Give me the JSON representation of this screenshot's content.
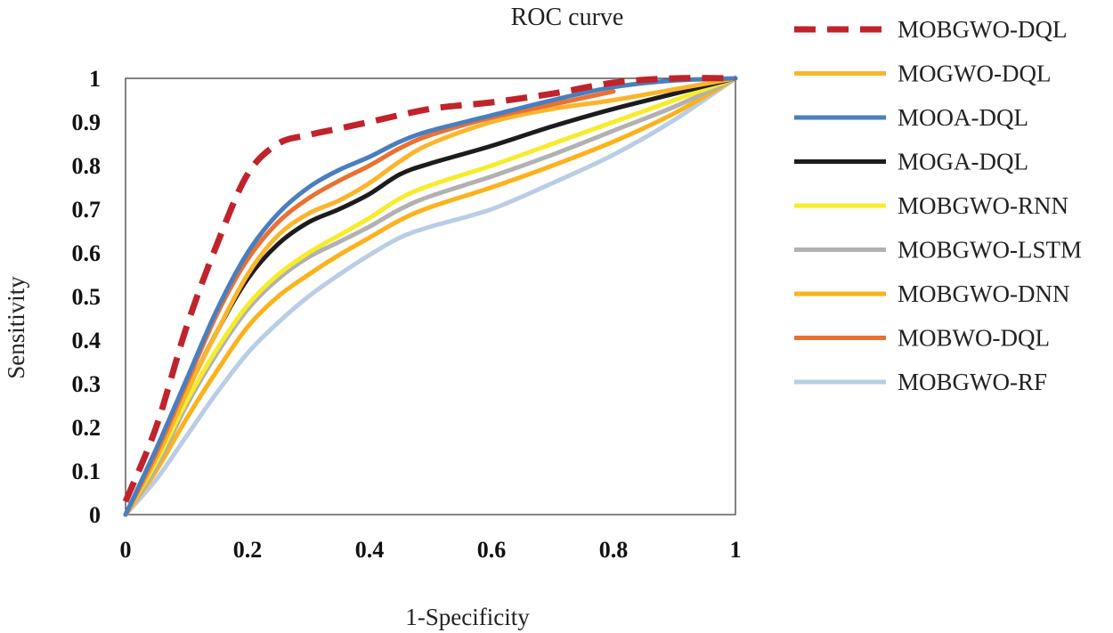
{
  "chart_data": {
    "type": "line",
    "title": "ROC curve",
    "xlabel": "1-Specificity",
    "ylabel": "Sensitivity",
    "xlim": [
      0,
      1
    ],
    "ylim": [
      0,
      1
    ],
    "xticks": [
      0,
      0.2,
      0.4,
      0.6,
      0.8,
      1
    ],
    "xtick_labels": [
      "0",
      "0.2",
      "0.4",
      "0.6",
      "0.8",
      "1"
    ],
    "yticks": [
      0,
      0.1,
      0.2,
      0.3,
      0.4,
      0.5,
      0.6,
      0.7,
      0.8,
      0.9,
      1
    ],
    "ytick_labels": [
      "0",
      "0.1",
      "0.2",
      "0.3",
      "0.4",
      "0.5",
      "0.6",
      "0.7",
      "0.8",
      "0.9",
      "1"
    ],
    "grid": false,
    "legend_position": "right",
    "series": [
      {
        "name": "MOBGWO-DQL",
        "color": "#c0232b",
        "dash": true,
        "x": [
          0,
          0.05,
          0.1,
          0.15,
          0.2,
          0.25,
          0.3,
          0.35,
          0.4,
          0.5,
          0.6,
          0.7,
          0.8,
          0.9,
          1
        ],
        "y": [
          0.03,
          0.2,
          0.43,
          0.62,
          0.78,
          0.85,
          0.87,
          0.885,
          0.9,
          0.93,
          0.945,
          0.965,
          0.99,
          1,
          1
        ]
      },
      {
        "name": "MOGWO-DQL",
        "color": "#fbb52c",
        "dash": false,
        "x": [
          0,
          0.05,
          0.1,
          0.15,
          0.2,
          0.25,
          0.3,
          0.35,
          0.4,
          0.45,
          0.5,
          0.6,
          0.7,
          0.8,
          0.9,
          1
        ],
        "y": [
          0,
          0.13,
          0.28,
          0.42,
          0.55,
          0.64,
          0.69,
          0.72,
          0.76,
          0.81,
          0.85,
          0.9,
          0.93,
          0.95,
          0.975,
          1
        ]
      },
      {
        "name": "MOOA-DQL",
        "color": "#4a7ebf",
        "dash": false,
        "x": [
          0,
          0.05,
          0.1,
          0.15,
          0.2,
          0.25,
          0.3,
          0.35,
          0.4,
          0.45,
          0.5,
          0.6,
          0.7,
          0.8,
          0.9,
          1
        ],
        "y": [
          0,
          0.15,
          0.31,
          0.47,
          0.6,
          0.69,
          0.75,
          0.79,
          0.82,
          0.855,
          0.88,
          0.915,
          0.95,
          0.98,
          0.995,
          1
        ]
      },
      {
        "name": "MOGA-DQL",
        "color": "#1c1c1c",
        "dash": false,
        "x": [
          0,
          0.05,
          0.1,
          0.15,
          0.2,
          0.25,
          0.3,
          0.35,
          0.4,
          0.45,
          0.5,
          0.6,
          0.7,
          0.8,
          0.9,
          1
        ],
        "y": [
          0,
          0.13,
          0.28,
          0.42,
          0.54,
          0.62,
          0.67,
          0.7,
          0.735,
          0.78,
          0.805,
          0.845,
          0.89,
          0.93,
          0.965,
          1
        ]
      },
      {
        "name": "MOBGWO-RNN",
        "color": "#f7ec2b",
        "dash": false,
        "x": [
          0,
          0.05,
          0.1,
          0.15,
          0.2,
          0.25,
          0.3,
          0.35,
          0.4,
          0.45,
          0.5,
          0.6,
          0.7,
          0.8,
          0.9,
          1
        ],
        "y": [
          0,
          0.12,
          0.26,
          0.38,
          0.48,
          0.55,
          0.6,
          0.64,
          0.68,
          0.725,
          0.755,
          0.8,
          0.85,
          0.9,
          0.95,
          1
        ]
      },
      {
        "name": "MOBGWO-LSTM",
        "color": "#b1b1b1",
        "dash": false,
        "x": [
          0,
          0.05,
          0.1,
          0.15,
          0.2,
          0.25,
          0.3,
          0.35,
          0.4,
          0.45,
          0.5,
          0.6,
          0.7,
          0.8,
          0.9,
          1
        ],
        "y": [
          0,
          0.11,
          0.25,
          0.37,
          0.47,
          0.54,
          0.59,
          0.625,
          0.66,
          0.7,
          0.73,
          0.775,
          0.825,
          0.88,
          0.935,
          1
        ]
      },
      {
        "name": "MOBGWO-DNN",
        "color": "#fbb21b",
        "dash": false,
        "x": [
          0,
          0.05,
          0.1,
          0.15,
          0.2,
          0.25,
          0.3,
          0.35,
          0.4,
          0.45,
          0.5,
          0.6,
          0.7,
          0.8,
          0.9,
          1
        ],
        "y": [
          0,
          0.1,
          0.22,
          0.33,
          0.43,
          0.5,
          0.55,
          0.595,
          0.635,
          0.675,
          0.705,
          0.75,
          0.8,
          0.855,
          0.92,
          1
        ]
      },
      {
        "name": "MOBWO-DQL",
        "color": "#ea7131",
        "dash": false,
        "x": [
          0,
          0.05,
          0.1,
          0.15,
          0.2,
          0.25,
          0.3,
          0.35,
          0.4,
          0.45,
          0.5,
          0.6,
          0.7,
          0.8
        ],
        "y": [
          0,
          0.14,
          0.3,
          0.46,
          0.585,
          0.67,
          0.725,
          0.765,
          0.8,
          0.84,
          0.87,
          0.91,
          0.94,
          0.97
        ]
      },
      {
        "name": "MOBGWO-RF",
        "color": "#b9cde4",
        "dash": false,
        "x": [
          0,
          0.05,
          0.1,
          0.15,
          0.2,
          0.25,
          0.3,
          0.35,
          0.4,
          0.45,
          0.5,
          0.6,
          0.7,
          0.8,
          0.9,
          1
        ],
        "y": [
          0,
          0.08,
          0.18,
          0.28,
          0.37,
          0.44,
          0.5,
          0.55,
          0.595,
          0.635,
          0.66,
          0.7,
          0.76,
          0.825,
          0.905,
          1
        ]
      }
    ]
  }
}
